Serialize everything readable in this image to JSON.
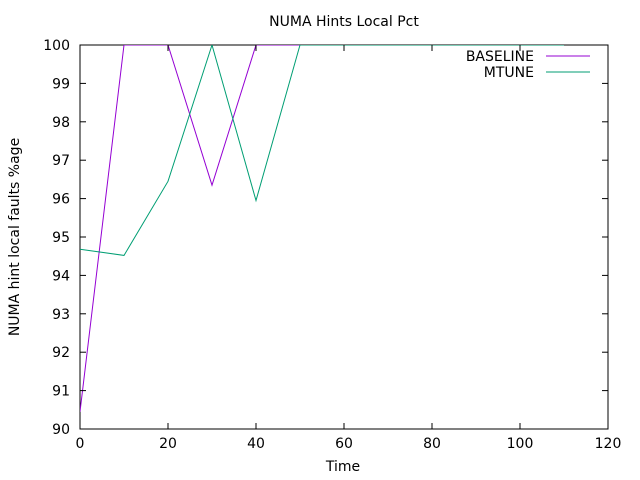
{
  "chart_data": {
    "type": "line",
    "title": "NUMA Hints Local Pct",
    "xlabel": "Time",
    "ylabel": "NUMA hint local faults %age",
    "xlim": [
      0,
      120
    ],
    "ylim": [
      90,
      100
    ],
    "xticks": [
      0,
      20,
      40,
      60,
      80,
      100,
      120
    ],
    "yticks": [
      90,
      91,
      92,
      93,
      94,
      95,
      96,
      97,
      98,
      99,
      100
    ],
    "grid": false,
    "legend_position": "top-right",
    "series": [
      {
        "name": "BASELINE",
        "color": "#9400d3",
        "x": [
          0,
          10,
          20,
          30,
          40,
          50,
          60,
          70,
          80,
          90,
          100,
          110
        ],
        "y": [
          90.45,
          100,
          100,
          96.35,
          100,
          100,
          100,
          100,
          100,
          100,
          100,
          100
        ]
      },
      {
        "name": "MTUNE",
        "color": "#009e73",
        "x": [
          0,
          10,
          20,
          30,
          40,
          50,
          60,
          70,
          80,
          90,
          100,
          110
        ],
        "y": [
          94.68,
          94.52,
          96.45,
          100,
          95.95,
          100,
          100,
          100,
          100,
          100,
          100,
          100
        ]
      }
    ]
  }
}
